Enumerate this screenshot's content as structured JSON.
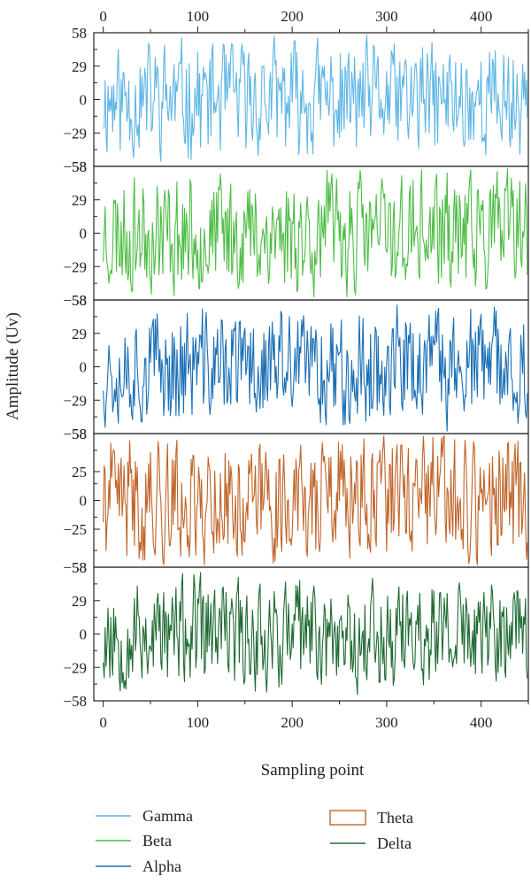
{
  "chart_data": {
    "type": "line",
    "xlabel": "Sampling point",
    "ylabel": "Amplitude (Uv)",
    "xlim": [
      -10,
      450
    ],
    "x_ticks": [
      0,
      100,
      200,
      300,
      400
    ],
    "x_tick_labels": [
      "0",
      "100",
      "200",
      "300",
      "400"
    ],
    "n_points": 450,
    "legend_position": "bottom",
    "series": [
      {
        "name": "Gamma",
        "color": "#5fb6e4",
        "ylim": [
          -58,
          58
        ],
        "y_ticks": [
          -58,
          -29,
          0,
          29,
          58
        ],
        "y_tick_labels": [
          "−58",
          "−29",
          "0",
          "29",
          "58"
        ],
        "amplitude": 52,
        "seed": 11
      },
      {
        "name": "Beta",
        "color": "#4dbd45",
        "ylim": [
          -58,
          58
        ],
        "y_ticks": [
          -58,
          -29,
          0,
          29,
          58
        ],
        "y_tick_labels": [
          "−58",
          "−29",
          "0",
          "29",
          "58"
        ],
        "amplitude": 54,
        "seed": 23
      },
      {
        "name": "Alpha",
        "color": "#1a6fb5",
        "ylim": [
          -58,
          58
        ],
        "y_ticks": [
          -58,
          -29,
          0,
          29,
          58
        ],
        "y_tick_labels": [
          "−58",
          "−29",
          "0",
          "29",
          "58"
        ],
        "amplitude": 52,
        "seed": 37
      },
      {
        "name": "Theta",
        "color": "#c0652a",
        "ylim": [
          -58,
          58
        ],
        "y_ticks": [
          -58,
          -25,
          0,
          25,
          58
        ],
        "y_tick_labels": [
          "−58",
          "−25",
          "0",
          "25",
          "58"
        ],
        "amplitude": 57,
        "seed": 41
      },
      {
        "name": "Delta",
        "color": "#1f6b33",
        "ylim": [
          -58,
          58
        ],
        "y_ticks": [
          -58,
          -29,
          0,
          29,
          58
        ],
        "y_tick_labels": [
          "−58",
          "−29",
          "0",
          "29",
          "58"
        ],
        "amplitude": 50,
        "seed": 53
      }
    ]
  }
}
